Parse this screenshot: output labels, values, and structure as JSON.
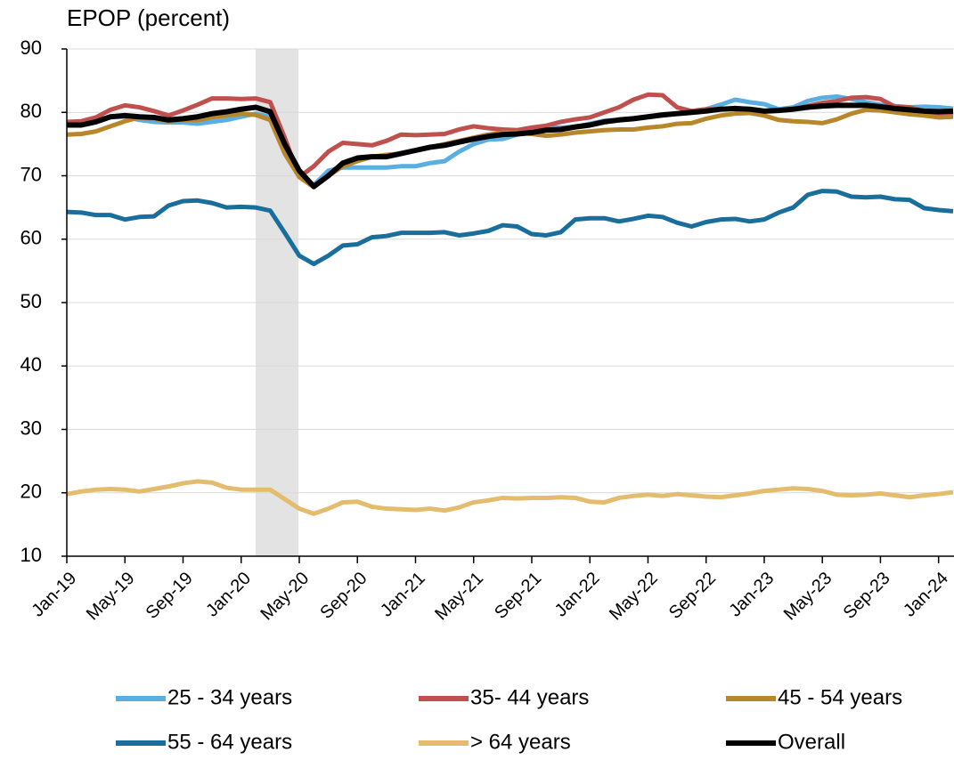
{
  "chart_data": {
    "type": "line",
    "y_label": "EPOP (percent)",
    "categories": [
      "Jan-19",
      null,
      null,
      null,
      "May-19",
      null,
      null,
      null,
      "Sep-19",
      null,
      null,
      null,
      "Jan-20",
      null,
      null,
      null,
      "May-20",
      null,
      null,
      null,
      "Sep-20",
      null,
      null,
      null,
      "Jan-21",
      null,
      null,
      null,
      "May-21",
      null,
      null,
      null,
      "Sep-21",
      null,
      null,
      null,
      "Jan-22",
      null,
      null,
      null,
      "May-22",
      null,
      null,
      null,
      "Sep-22",
      null,
      null,
      null,
      "Jan-23",
      null,
      null,
      null,
      "May-23",
      null,
      null,
      null,
      "Sep-23",
      null,
      null,
      null,
      "Jan-24",
      null
    ],
    "ylim": [
      10,
      90
    ],
    "yticks": [
      10,
      20,
      30,
      40,
      50,
      60,
      70,
      80,
      90
    ],
    "grid": true,
    "series": [
      {
        "name": "25 - 34 years",
        "color": "#5aaee0",
        "values": [
          78.2,
          78.4,
          78.8,
          79.3,
          79.3,
          78.8,
          78.5,
          78.4,
          78.4,
          78.2,
          78.5,
          78.8,
          79.3,
          79.8,
          79.3,
          74.5,
          70,
          68.5,
          70.8,
          71.3,
          71.3,
          71.3,
          71.3,
          71.5,
          71.5,
          72,
          72.3,
          73.8,
          75,
          75.7,
          75.8,
          76.5,
          77,
          77.5,
          77.6,
          77.7,
          78.2,
          78.7,
          78.8,
          79,
          79.3,
          79.5,
          79.8,
          80.2,
          80.5,
          81.2,
          82,
          81.6,
          81.3,
          80.5,
          80.8,
          81.8,
          82.3,
          82.5,
          82.1,
          81.6,
          81.2,
          81,
          80.8,
          80.9,
          80.8,
          80.6
        ]
      },
      {
        "name": "35- 44 years",
        "color": "#c0504d",
        "values": [
          78.5,
          78.6,
          79.2,
          80.4,
          81.1,
          80.8,
          80.2,
          79.5,
          80.3,
          81.2,
          82.2,
          82.2,
          82.1,
          82.2,
          81.6,
          76,
          69.8,
          71.5,
          73.8,
          75.2,
          75,
          74.8,
          75.5,
          76.5,
          76.4,
          76.5,
          76.6,
          77.3,
          77.8,
          77.5,
          77.3,
          77.2,
          77.6,
          77.9,
          78.5,
          78.9,
          79.2,
          80,
          80.8,
          82,
          82.8,
          82.7,
          80.8,
          80.2,
          80.5,
          80.5,
          80.7,
          80.5,
          80.2,
          80.3,
          80.5,
          81,
          81.5,
          81.8,
          82.3,
          82.4,
          82.1,
          80.9,
          80.8,
          80.2,
          79.8,
          79.8
        ]
      },
      {
        "name": "45 - 54 years",
        "color": "#b8862b",
        "values": [
          76.5,
          76.6,
          77,
          77.8,
          78.6,
          79.2,
          79,
          78.6,
          78.8,
          78.8,
          79.2,
          79.5,
          79.8,
          79.6,
          78.8,
          73.5,
          69.8,
          68.2,
          70,
          71.5,
          72.3,
          73,
          73.3,
          73.5,
          74,
          74.5,
          75,
          75.5,
          76,
          76.5,
          76.8,
          76.8,
          76.6,
          76.3,
          76.5,
          76.8,
          77,
          77.2,
          77.3,
          77.3,
          77.6,
          77.8,
          78.2,
          78.3,
          79,
          79.5,
          79.8,
          79.9,
          79.5,
          78.8,
          78.6,
          78.5,
          78.3,
          78.9,
          79.8,
          80.4,
          80.3,
          80,
          79.7,
          79.5,
          79.2,
          79.3
        ]
      },
      {
        "name": "55 - 64 years",
        "color": "#1a6e9b",
        "values": [
          64.3,
          64.2,
          63.8,
          63.8,
          63.1,
          63.5,
          63.6,
          65.3,
          66,
          66.1,
          65.7,
          65,
          65.1,
          65,
          64.5,
          61,
          57.4,
          56.1,
          57.4,
          59,
          59.2,
          60.3,
          60.5,
          61,
          61,
          61,
          61.1,
          60.6,
          60.9,
          61.3,
          62.2,
          62,
          60.8,
          60.6,
          61.1,
          63.1,
          63.3,
          63.3,
          62.8,
          63.2,
          63.7,
          63.5,
          62.6,
          62,
          62.7,
          63.1,
          63.2,
          62.8,
          63.1,
          64.2,
          65,
          67,
          67.6,
          67.5,
          66.7,
          66.6,
          66.7,
          66.3,
          66.2,
          64.9,
          64.6,
          64.4
        ]
      },
      {
        "name": "> 64 years",
        "color": "#e3bc6e",
        "values": [
          19.8,
          20.2,
          20.5,
          20.6,
          20.5,
          20.2,
          20.6,
          21,
          21.5,
          21.8,
          21.6,
          20.8,
          20.5,
          20.5,
          20.5,
          19,
          17.5,
          16.7,
          17.5,
          18.5,
          18.6,
          17.8,
          17.5,
          17.4,
          17.3,
          17.5,
          17.2,
          17.7,
          18.5,
          18.8,
          19.2,
          19.1,
          19.2,
          19.2,
          19.3,
          19.2,
          18.6,
          18.5,
          19.2,
          19.5,
          19.7,
          19.5,
          19.8,
          19.6,
          19.4,
          19.3,
          19.6,
          19.9,
          20.3,
          20.5,
          20.7,
          20.6,
          20.3,
          19.7,
          19.6,
          19.7,
          19.9,
          19.6,
          19.3,
          19.6,
          19.8,
          20.1
        ]
      },
      {
        "name": "Overall",
        "color": "#000000",
        "values": [
          78,
          78,
          78.5,
          79.3,
          79.5,
          79.3,
          79.2,
          78.8,
          79,
          79.3,
          79.8,
          80.1,
          80.5,
          80.8,
          80.1,
          75,
          70.8,
          68.3,
          70,
          72,
          72.8,
          73,
          73,
          73.5,
          74,
          74.5,
          74.8,
          75.3,
          75.8,
          76.2,
          76.5,
          76.6,
          76.8,
          77.2,
          77.3,
          77.7,
          78,
          78.5,
          78.8,
          79,
          79.3,
          79.6,
          79.8,
          80,
          80.2,
          80.5,
          80.6,
          80.5,
          80.2,
          80.3,
          80.5,
          80.8,
          81,
          81.1,
          81.1,
          81.1,
          80.9,
          80.6,
          80.4,
          80.2,
          80.1,
          80.2
        ]
      }
    ]
  }
}
